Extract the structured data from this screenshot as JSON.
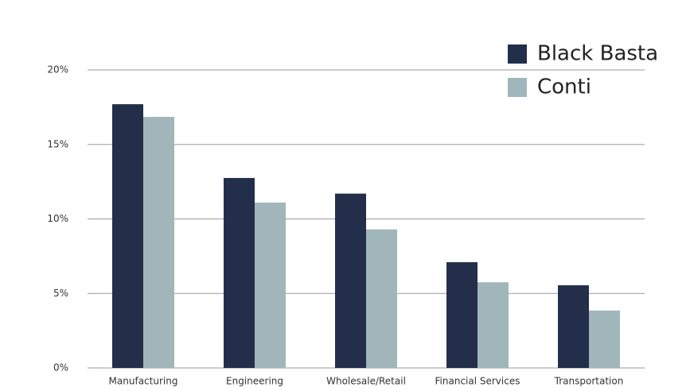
{
  "chart_data": {
    "type": "bar",
    "categories": [
      "Manufacturing",
      "Engineering",
      "Wholesale/Retail",
      "Financial Services",
      "Transportation"
    ],
    "series": [
      {
        "name": "Black Basta",
        "color": "#232f4a",
        "values": [
          17.7,
          12.75,
          11.7,
          7.1,
          5.55
        ]
      },
      {
        "name": "Conti",
        "color": "#a0b6ba",
        "values": [
          16.85,
          11.1,
          9.3,
          5.75,
          3.85
        ]
      }
    ],
    "ylim": [
      0,
      20
    ],
    "yticks": [
      {
        "value": 0,
        "label": "0%"
      },
      {
        "value": 5,
        "label": "5%"
      },
      {
        "value": 10,
        "label": "10%"
      },
      {
        "value": 15,
        "label": "15%"
      },
      {
        "value": 20,
        "label": "20%"
      }
    ],
    "grid": true,
    "legend": "top-right"
  }
}
